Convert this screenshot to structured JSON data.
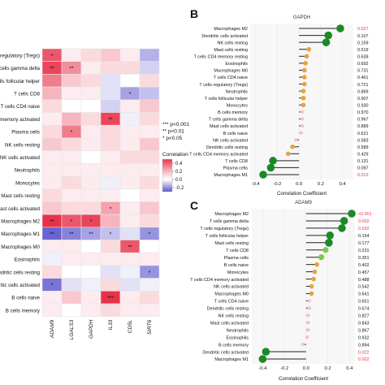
{
  "chart_data": [
    {
      "type": "heatmap",
      "title": "",
      "xlabel": "",
      "ylabel": "",
      "columns": [
        "ADAM9",
        "LGALS3",
        "GAPDH",
        "IL33",
        "CD5L",
        "SIRT6"
      ],
      "rows": [
        "T cells regulatory (Tregs)",
        "T cells gamma delta",
        "T cells follicular helper",
        "T cells CD8",
        "T cells CD4 naive",
        "T cells CD4 memory activated",
        "Plasma cells",
        "NK cells resting",
        "NK cells activated",
        "Neutrophils",
        "Monocytes",
        "Mast cells resting",
        "Mast cells activated",
        "Macrophages M2",
        "Macrophages M1",
        "Macrophages M0",
        "Eosinophils",
        "Dendritic cells resting",
        "Dendritic cells activated",
        "B cells naive",
        "B cells memory"
      ],
      "values": [
        [
          0.45,
          0.05,
          0.1,
          0.15,
          0.05,
          -0.25
        ],
        [
          0.5,
          0.3,
          0.05,
          0.1,
          0.1,
          -0.15
        ],
        [
          0.35,
          0.15,
          0.1,
          -0.1,
          0.0,
          0.1
        ],
        [
          0.2,
          0.05,
          0.05,
          -0.1,
          -0.3,
          -0.2
        ],
        [
          0.1,
          0.0,
          0.0,
          -0.15,
          0.05,
          0.15
        ],
        [
          0.05,
          0.2,
          0.1,
          0.5,
          -0.05,
          0.1
        ],
        [
          0.1,
          0.35,
          0.05,
          0.1,
          0.05,
          0.05
        ],
        [
          0.15,
          0.1,
          0.05,
          0.1,
          0.05,
          0.15
        ],
        [
          0.05,
          0.05,
          0.0,
          0.05,
          0.1,
          0.1
        ],
        [
          0.05,
          0.05,
          0.05,
          0.05,
          0.05,
          0.05
        ],
        [
          0.05,
          0.1,
          0.05,
          -0.05,
          0.05,
          0.1
        ],
        [
          0.1,
          0.05,
          0.05,
          0.05,
          0.0,
          0.05
        ],
        [
          0.15,
          0.1,
          0.1,
          0.25,
          0.05,
          0.15
        ],
        [
          0.55,
          0.45,
          0.5,
          0.2,
          0.05,
          0.1
        ],
        [
          -0.5,
          -0.4,
          -0.3,
          -0.2,
          -0.1,
          -0.35
        ],
        [
          0.05,
          0.05,
          0.0,
          0.1,
          0.45,
          0.0
        ],
        [
          -0.05,
          0.05,
          0.05,
          0.05,
          0.05,
          0.05
        ],
        [
          0.1,
          0.0,
          0.0,
          -0.1,
          -0.05,
          -0.35
        ],
        [
          -0.45,
          -0.1,
          -0.05,
          0.1,
          -0.1,
          -0.05
        ],
        [
          0.05,
          0.15,
          0.05,
          0.6,
          0.05,
          0.1
        ],
        [
          0.05,
          0.0,
          0.05,
          0.1,
          0.05,
          0.05
        ]
      ],
      "stars": [
        [
          "*",
          "",
          "",
          "",
          "",
          ""
        ],
        [
          "**",
          "**",
          "",
          "",
          "",
          ""
        ],
        [
          "",
          "",
          "",
          "",
          "",
          ""
        ],
        [
          "",
          "",
          "",
          "",
          "*",
          ""
        ],
        [
          "",
          "",
          "",
          "",
          "",
          ""
        ],
        [
          "",
          "",
          "",
          "**",
          "",
          ""
        ],
        [
          "",
          "*",
          "",
          "",
          "",
          ""
        ],
        [
          "",
          "",
          "",
          "",
          "",
          ""
        ],
        [
          "",
          "",
          "",
          "",
          "",
          ""
        ],
        [
          "",
          "",
          "",
          "",
          "",
          ""
        ],
        [
          "",
          "",
          "",
          "",
          "",
          ""
        ],
        [
          "",
          "",
          "",
          "",
          "",
          ""
        ],
        [
          "",
          "",
          "",
          "*",
          "",
          ""
        ],
        [
          "**",
          "*",
          "*",
          "",
          "",
          ""
        ],
        [
          "**",
          "**",
          "**",
          "*",
          "",
          "*"
        ],
        [
          "",
          "",
          "",
          "",
          "**",
          ""
        ],
        [
          "",
          "",
          "",
          "",
          "",
          ""
        ],
        [
          "",
          "",
          "",
          "",
          "",
          "*"
        ],
        [
          "*",
          "",
          "",
          "",
          "",
          ""
        ],
        [
          "",
          "",
          "",
          "***",
          "",
          ""
        ],
        [
          "",
          "",
          "",
          "",
          "",
          ""
        ]
      ],
      "colorbar": {
        "title": "Correlation",
        "ticks": [
          0.4,
          0.2,
          0.0,
          -0.2
        ],
        "range": [
          -0.3,
          0.5
        ]
      },
      "colors": {
        "high": "#e8324b",
        "mid": "#ffffff",
        "low": "#5b55cc"
      },
      "significance_legend": [
        "*** p<0.001",
        "** p<0.01",
        "* p<0.05"
      ]
    },
    {
      "type": "scatter",
      "panel_label": "B",
      "title": "GAPDH",
      "xlabel": "Correlation Coefficient",
      "ylabel": "",
      "xlim": [
        -0.45,
        0.5
      ],
      "xticks": [
        -0.4,
        -0.2,
        0.0,
        0.2,
        0.4
      ],
      "categories": [
        "Macrophages M2",
        "Dendritic cells activated",
        "NK cells resting",
        "Mast cells resting",
        "T cells CD4 memory resting",
        "Eosinophils",
        "Macrophages M0",
        "T cells CD4 naive",
        "T cells regulatory (Tregs)",
        "Neutrophils",
        "T cells follicular helper",
        "Monocytes",
        "B cells memory",
        "T cells gamma delta",
        "Mast cells activated",
        "B cells naive",
        "NK cells activated",
        "Dendritic cells resting",
        "T cells CD4 memory activated",
        "T cells CD8",
        "Plasma cells",
        "Macrophages M1"
      ],
      "values": [
        0.38,
        0.27,
        0.25,
        0.09,
        0.07,
        0.06,
        0.05,
        0.05,
        0.05,
        0.04,
        0.04,
        0.04,
        0.03,
        0.03,
        0.03,
        0.02,
        -0.03,
        -0.06,
        -0.1,
        -0.24,
        -0.26,
        -0.33
      ],
      "pvalues": [
        "0.027",
        "0.107",
        "0.159",
        "0.519",
        "0.639",
        "0.692",
        "0.731",
        "0.461",
        "0.721",
        "0.869",
        "0.907",
        "0.930",
        "0.970",
        "0.967",
        "0.889",
        "0.621",
        "0.583",
        "0.589",
        "0.429",
        "0.131",
        "0.097",
        "0.013"
      ],
      "highlight_pvalues": [
        "0.027",
        "0.013"
      ],
      "colors": {
        "large": "#1a8a26",
        "mid": "#82c93f",
        "small": "#e9a23b",
        "tiny": "#f2c2d2",
        "significant": "#e8324b",
        "stem": "#222222"
      }
    },
    {
      "type": "scatter",
      "panel_label": "C",
      "title": "ADAM9",
      "xlabel": "Correlation Coefficient",
      "ylabel": "",
      "xlim": [
        -0.5,
        0.45
      ],
      "xticks": [
        -0.4,
        -0.2,
        0.0,
        0.2,
        0.4
      ],
      "categories": [
        "Macrophages M2",
        "T cells gamma delta",
        "T cells regulatory (Tregs)",
        "T cells follicular helper",
        "Mast cells resting",
        "T cells CD8",
        "Plasma cells",
        "B cells naive",
        "Monocytes",
        "T cells CD4 memory activated",
        "NK cells activated",
        "Macrophages M0",
        "T cells CD4 naive",
        "Dendritic cells resting",
        "NK cells resting",
        "Mast cells activated",
        "Neutrophils",
        "Eosinophils",
        "B cells memory",
        "Dendritic cells activated",
        "Macrophages M1"
      ],
      "values": [
        0.42,
        0.35,
        0.33,
        0.22,
        0.21,
        0.18,
        0.14,
        0.1,
        0.08,
        0.07,
        0.05,
        0.05,
        0.03,
        0.03,
        0.02,
        0.02,
        0.02,
        0.01,
        -0.03,
        -0.37,
        -0.4
      ],
      "pvalues": [
        "<0.001",
        "0.002",
        "0.032",
        "0.154",
        "0.177",
        "0.231",
        "0.351",
        "0.402",
        "0.457",
        "0.488",
        "0.542",
        "0.641",
        "0.651",
        "0.674",
        "0.827",
        "0.843",
        "0.867",
        "0.932",
        "0.894",
        "0.022",
        "0.002"
      ],
      "highlight_pvalues": [
        "<0.001",
        "0.002",
        "0.032",
        "0.022"
      ],
      "colors": {
        "large": "#1a8a26",
        "mid": "#82c93f",
        "small": "#e9a23b",
        "tiny": "#f2c2d2",
        "significant": "#e8324b",
        "stem": "#222222"
      }
    }
  ]
}
